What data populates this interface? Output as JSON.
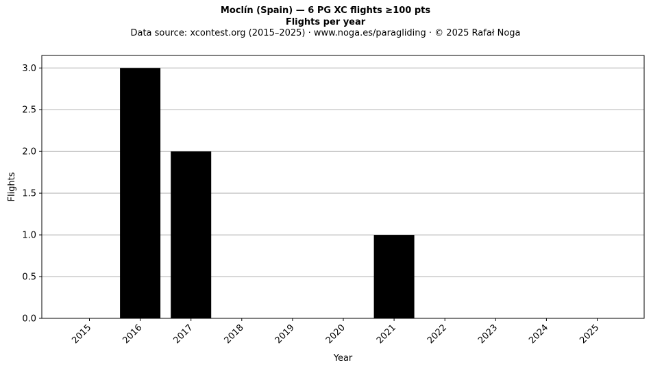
{
  "chart_data": {
    "type": "bar",
    "title": "Moclín (Spain)  —  6 PG XC flights ≥100 pts",
    "subtitle": "Flights per year",
    "source": "Data source: xcontest.org (2015–2025)  ·  www.noga.es/paragliding  ·  © 2025 Rafał Noga",
    "xlabel": "Year",
    "ylabel": "Flights",
    "categories": [
      "2015",
      "2016",
      "2017",
      "2018",
      "2019",
      "2020",
      "2021",
      "2022",
      "2023",
      "2024",
      "2025"
    ],
    "values": [
      0,
      3,
      2,
      0,
      0,
      0,
      1,
      0,
      0,
      0,
      0
    ],
    "ylim": [
      0,
      3.15
    ],
    "yticks": [
      "0.0",
      "0.5",
      "1.0",
      "1.5",
      "2.0",
      "2.5",
      "3.0"
    ],
    "grid": "horizontal",
    "bar_color": "#000000",
    "grid_color": "#b0b0b0"
  }
}
